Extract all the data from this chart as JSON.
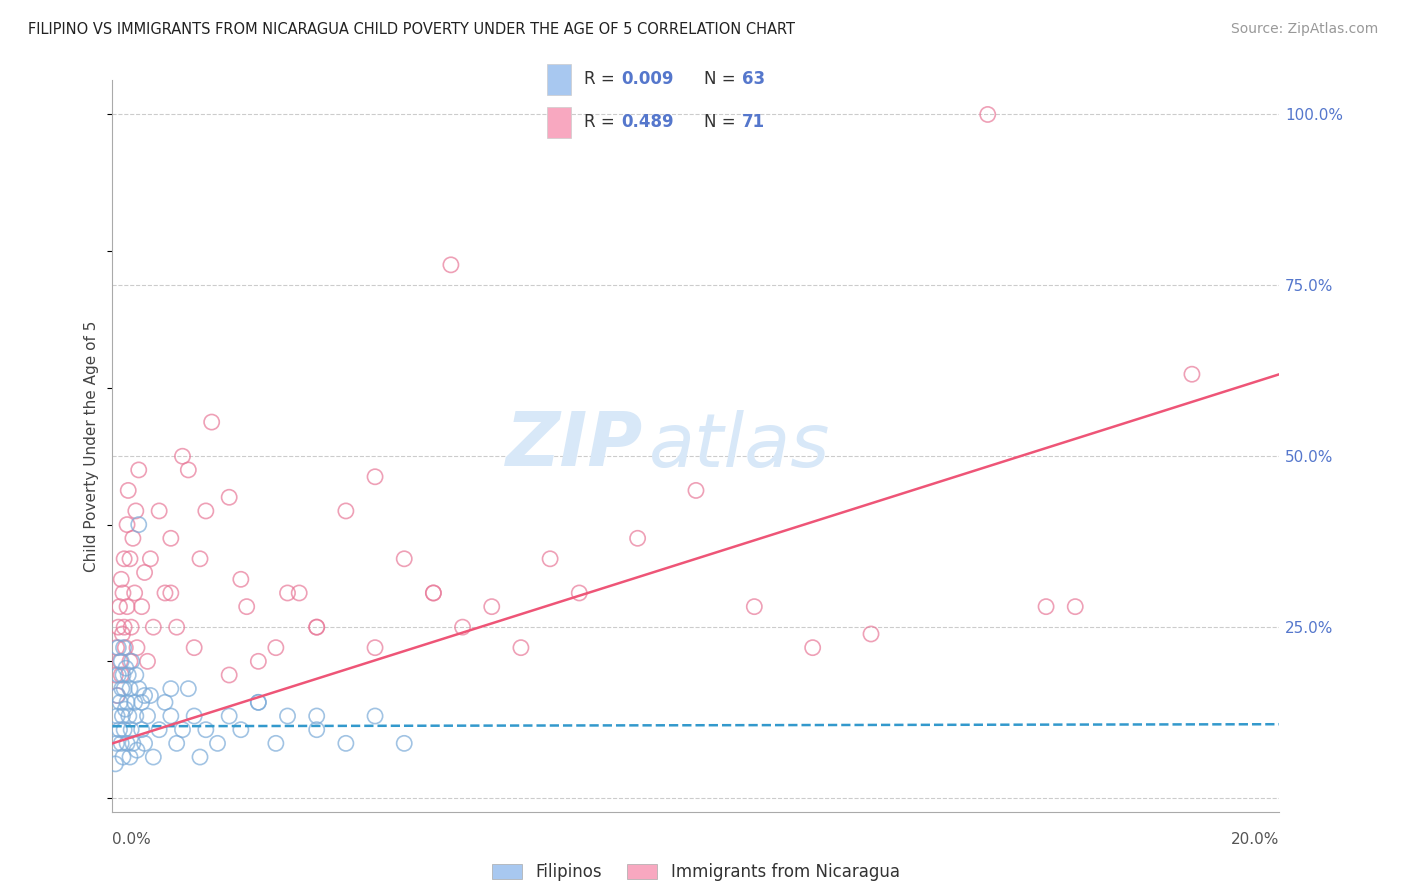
{
  "title": "FILIPINO VS IMMIGRANTS FROM NICARAGUA CHILD POVERTY UNDER THE AGE OF 5 CORRELATION CHART",
  "source": "Source: ZipAtlas.com",
  "ylabel": "Child Poverty Under the Age of 5",
  "xlim": [
    0.0,
    20.0
  ],
  "ylim": [
    -2.0,
    105.0
  ],
  "yticks": [
    0,
    25,
    50,
    75,
    100
  ],
  "ytick_labels": [
    "",
    "25.0%",
    "50.0%",
    "75.0%",
    "100.0%"
  ],
  "blue_R": 0.009,
  "blue_N": 63,
  "pink_R": 0.489,
  "pink_N": 71,
  "blue_color": "#A8C8F0",
  "pink_color": "#F8A8C0",
  "blue_edge_color": "#7AAAD8",
  "pink_edge_color": "#E87898",
  "blue_line_color": "#3399CC",
  "pink_line_color": "#EE5577",
  "grid_color": "#CCCCCC",
  "title_color": "#222222",
  "source_color": "#999999",
  "right_axis_color": "#5577CC",
  "watermark_zip": "ZIP",
  "watermark_atlas": "atlas",
  "watermark_color": "#D8E8F8",
  "filipinos_label": "Filipinos",
  "nicaragua_label": "Immigrants from Nicaragua",
  "blue_line_y0": 10.5,
  "blue_line_y1": 10.8,
  "pink_line_y0": 8.0,
  "pink_line_y1": 62.0,
  "blue_scatter_x": [
    0.05,
    0.07,
    0.08,
    0.09,
    0.1,
    0.1,
    0.12,
    0.13,
    0.15,
    0.15,
    0.16,
    0.17,
    0.18,
    0.18,
    0.19,
    0.2,
    0.2,
    0.22,
    0.23,
    0.25,
    0.25,
    0.27,
    0.28,
    0.3,
    0.3,
    0.32,
    0.33,
    0.35,
    0.38,
    0.4,
    0.4,
    0.42,
    0.45,
    0.5,
    0.5,
    0.55,
    0.6,
    0.65,
    0.7,
    0.8,
    0.9,
    1.0,
    1.1,
    1.2,
    1.3,
    1.4,
    1.5,
    1.6,
    1.8,
    2.0,
    2.2,
    2.5,
    2.8,
    3.0,
    3.5,
    4.0,
    4.5,
    5.0,
    0.45,
    3.5,
    2.5,
    1.0,
    0.55
  ],
  "blue_scatter_y": [
    5,
    8,
    12,
    15,
    18,
    22,
    10,
    14,
    8,
    20,
    16,
    12,
    18,
    6,
    22,
    10,
    16,
    13,
    19,
    8,
    14,
    18,
    12,
    16,
    6,
    10,
    20,
    8,
    14,
    12,
    18,
    7,
    16,
    10,
    14,
    8,
    12,
    15,
    6,
    10,
    14,
    12,
    8,
    10,
    16,
    12,
    6,
    10,
    8,
    12,
    10,
    14,
    8,
    12,
    10,
    8,
    12,
    8,
    40,
    12,
    14,
    16,
    15
  ],
  "pink_scatter_x": [
    0.05,
    0.07,
    0.08,
    0.1,
    0.12,
    0.13,
    0.15,
    0.15,
    0.17,
    0.18,
    0.2,
    0.2,
    0.22,
    0.25,
    0.25,
    0.27,
    0.3,
    0.3,
    0.32,
    0.35,
    0.38,
    0.4,
    0.42,
    0.5,
    0.55,
    0.6,
    0.65,
    0.7,
    0.8,
    0.9,
    1.0,
    1.1,
    1.2,
    1.3,
    1.5,
    1.6,
    1.7,
    2.0,
    2.2,
    2.3,
    2.5,
    2.8,
    3.0,
    3.5,
    4.0,
    4.5,
    5.0,
    5.5,
    6.0,
    6.5,
    7.0,
    8.0,
    9.0,
    10.0,
    11.0,
    12.0,
    13.0,
    15.0,
    16.0,
    3.5,
    5.5,
    2.0,
    1.4,
    1.0,
    0.45,
    4.5,
    7.5,
    3.2,
    5.8,
    16.5,
    18.5
  ],
  "pink_scatter_y": [
    18,
    22,
    15,
    25,
    28,
    20,
    32,
    18,
    24,
    30,
    25,
    35,
    22,
    28,
    40,
    45,
    20,
    35,
    25,
    38,
    30,
    42,
    22,
    28,
    33,
    20,
    35,
    25,
    42,
    30,
    38,
    25,
    50,
    48,
    35,
    42,
    55,
    44,
    32,
    28,
    20,
    22,
    30,
    25,
    42,
    22,
    35,
    30,
    25,
    28,
    22,
    30,
    38,
    45,
    28,
    22,
    24,
    100,
    28,
    25,
    30,
    18,
    22,
    30,
    48,
    47,
    35,
    30,
    78,
    28,
    62
  ]
}
